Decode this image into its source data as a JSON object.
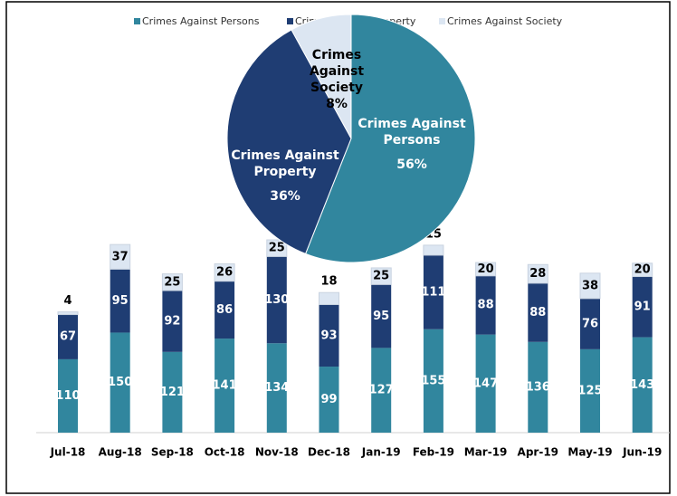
{
  "chart_data": [
    {
      "type": "bar",
      "categories": [
        "Jul-18",
        "Aug-18",
        "Sep-18",
        "Oct-18",
        "Nov-18",
        "Dec-18",
        "Jan-19",
        "Feb-19",
        "Mar-19",
        "Apr-19",
        "May-19",
        "Jun-19"
      ],
      "series": [
        {
          "name": "Crimes Against Persons",
          "color": "#31869e",
          "values": [
            110,
            150,
            121,
            141,
            134,
            99,
            127,
            155,
            147,
            136,
            125,
            143
          ]
        },
        {
          "name": "Crimes Against Property",
          "color": "#1f3d73",
          "values": [
            67,
            95,
            92,
            86,
            130,
            93,
            95,
            111,
            88,
            88,
            76,
            91
          ]
        },
        {
          "name": "Crimes Against Society",
          "color": "#dce6f2",
          "values": [
            4,
            37,
            25,
            26,
            25,
            18,
            25,
            15,
            20,
            28,
            38,
            20
          ]
        }
      ],
      "stacked": true
    },
    {
      "type": "pie",
      "categories": [
        "Crimes Against Persons",
        "Crimes Against Property",
        "Crimes Against Society"
      ],
      "values": [
        56,
        36,
        8
      ],
      "value_labels": [
        "56%",
        "36%",
        "8%"
      ],
      "colors": [
        "#31869e",
        "#1f3d73",
        "#dce6f2"
      ]
    }
  ]
}
